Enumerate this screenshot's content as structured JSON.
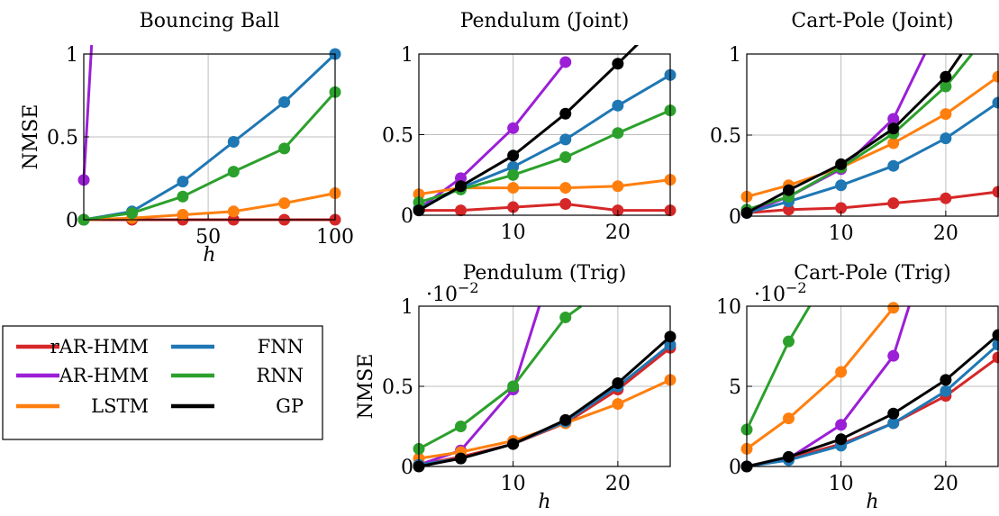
{
  "colors": {
    "rAR-HMM": "#d62728",
    "AR-HMM": "#9b1fd6",
    "LSTM": "#ff7f0e",
    "FNN": "#1f77b4",
    "RNN": "#2ca02c",
    "GP": "#000000"
  },
  "legend": {
    "entries": [
      {
        "name": "rAR-HMM",
        "label": "rAR-HMM"
      },
      {
        "name": "FNN",
        "label": "FNN"
      },
      {
        "name": "AR-HMM",
        "label": "AR-HMM"
      },
      {
        "name": "RNN",
        "label": "RNN"
      },
      {
        "name": "LSTM",
        "label": "LSTM"
      },
      {
        "name": "GP",
        "label": "GP"
      }
    ]
  },
  "chart_data": [
    {
      "type": "line",
      "title": "Bouncing Ball",
      "xlabel": "h",
      "ylabel": "NMSE",
      "xlim": [
        1,
        100
      ],
      "ylim": [
        0,
        1
      ],
      "xticks": [
        50,
        100
      ],
      "xtick_labels": [
        "50",
        "100"
      ],
      "yticks": [
        0,
        0.5,
        1
      ],
      "ytick_labels": [
        "0",
        "0.5",
        "1"
      ],
      "multiplier": "",
      "grid": true,
      "series": [
        {
          "name": "rAR-HMM",
          "x": [
            1,
            20,
            40,
            60,
            80,
            100
          ],
          "y": [
            0,
            0,
            0,
            0,
            0,
            0
          ]
        },
        {
          "name": "AR-HMM",
          "x": [
            1,
            5
          ],
          "y": [
            0.24,
            1.3
          ]
        },
        {
          "name": "LSTM",
          "x": [
            1,
            20,
            40,
            60,
            80,
            100
          ],
          "y": [
            0,
            0.01,
            0.03,
            0.05,
            0.1,
            0.16
          ]
        },
        {
          "name": "FNN",
          "x": [
            1,
            20,
            40,
            60,
            80,
            100
          ],
          "y": [
            0,
            0.05,
            0.23,
            0.47,
            0.71,
            1.0
          ]
        },
        {
          "name": "RNN",
          "x": [
            1,
            20,
            40,
            60,
            80,
            100
          ],
          "y": [
            0,
            0.04,
            0.14,
            0.29,
            0.43,
            0.77
          ]
        }
      ]
    },
    {
      "type": "line",
      "title": "Pendulum (Joint)",
      "xlabel": "",
      "ylabel": "",
      "xlim": [
        1,
        25
      ],
      "ylim": [
        0,
        1
      ],
      "xticks": [
        10,
        20
      ],
      "xtick_labels": [
        "10",
        "20"
      ],
      "yticks": [
        0,
        0.5,
        1
      ],
      "ytick_labels": [
        "0",
        "0.5",
        "1"
      ],
      "multiplier": "",
      "grid": true,
      "series": [
        {
          "name": "rAR-HMM",
          "x": [
            1,
            5,
            10,
            15,
            20,
            25
          ],
          "y": [
            0.03,
            0.03,
            0.05,
            0.07,
            0.03,
            0.03
          ]
        },
        {
          "name": "AR-HMM",
          "x": [
            1,
            5,
            10,
            15
          ],
          "y": [
            0.04,
            0.23,
            0.54,
            0.95
          ]
        },
        {
          "name": "LSTM",
          "x": [
            1,
            5,
            10,
            15,
            20,
            25
          ],
          "y": [
            0.13,
            0.17,
            0.17,
            0.17,
            0.18,
            0.22
          ]
        },
        {
          "name": "FNN",
          "x": [
            1,
            5,
            10,
            15,
            20,
            25
          ],
          "y": [
            0.04,
            0.17,
            0.3,
            0.47,
            0.68,
            0.87
          ]
        },
        {
          "name": "RNN",
          "x": [
            1,
            5,
            10,
            15,
            20,
            25
          ],
          "y": [
            0.08,
            0.16,
            0.25,
            0.36,
            0.51,
            0.65
          ]
        },
        {
          "name": "GP",
          "x": [
            1,
            5,
            10,
            15,
            20,
            22.5
          ],
          "y": [
            0.03,
            0.18,
            0.37,
            0.63,
            0.94,
            1.1
          ]
        }
      ]
    },
    {
      "type": "line",
      "title": "Cart-Pole (Joint)",
      "xlabel": "",
      "ylabel": "",
      "xlim": [
        1,
        25
      ],
      "ylim": [
        0,
        1
      ],
      "xticks": [
        10,
        20
      ],
      "xtick_labels": [
        "10",
        "20"
      ],
      "yticks": [
        0,
        0.5,
        1
      ],
      "ytick_labels": [
        "0",
        "0.5",
        "1"
      ],
      "multiplier": "",
      "grid": true,
      "series": [
        {
          "name": "rAR-HMM",
          "x": [
            1,
            5,
            10,
            15,
            20,
            25
          ],
          "y": [
            0.02,
            0.04,
            0.05,
            0.08,
            0.11,
            0.15
          ]
        },
        {
          "name": "AR-HMM",
          "x": [
            1,
            5,
            10,
            15,
            18
          ],
          "y": [
            0.02,
            0.12,
            0.29,
            0.6,
            1.0
          ]
        },
        {
          "name": "LSTM",
          "x": [
            1,
            5,
            10,
            15,
            20,
            25
          ],
          "y": [
            0.12,
            0.19,
            0.3,
            0.45,
            0.63,
            0.86
          ]
        },
        {
          "name": "FNN",
          "x": [
            1,
            5,
            10,
            15,
            20,
            25
          ],
          "y": [
            0.02,
            0.09,
            0.19,
            0.31,
            0.48,
            0.7
          ]
        },
        {
          "name": "RNN",
          "x": [
            1,
            5,
            10,
            15,
            20,
            22.5
          ],
          "y": [
            0.04,
            0.12,
            0.3,
            0.51,
            0.8,
            1.0
          ]
        },
        {
          "name": "GP",
          "x": [
            1,
            5,
            10,
            15,
            20,
            21.5
          ],
          "y": [
            0.02,
            0.16,
            0.32,
            0.54,
            0.86,
            1.0
          ]
        }
      ]
    },
    {
      "type": "line",
      "title": "Pendulum (Trig)",
      "xlabel": "h",
      "ylabel": "NMSE",
      "xlim": [
        1,
        25
      ],
      "ylim": [
        0,
        1
      ],
      "xticks": [
        10,
        20
      ],
      "xtick_labels": [
        "10",
        "20"
      ],
      "yticks": [
        0,
        0.5,
        1
      ],
      "ytick_labels": [
        "0",
        "0.5",
        "1"
      ],
      "multiplier": "·10",
      "multiplier_exp": "−2",
      "grid": true,
      "series": [
        {
          "name": "rAR-HMM",
          "x": [
            1,
            5,
            10,
            15,
            20,
            25
          ],
          "y": [
            0.01,
            0.06,
            0.14,
            0.27,
            0.48,
            0.74
          ]
        },
        {
          "name": "AR-HMM",
          "x": [
            1,
            5,
            10,
            12.5
          ],
          "y": [
            0.01,
            0.1,
            0.48,
            1.0
          ]
        },
        {
          "name": "LSTM",
          "x": [
            1,
            5,
            10,
            15,
            20,
            25
          ],
          "y": [
            0.05,
            0.09,
            0.16,
            0.27,
            0.39,
            0.54
          ]
        },
        {
          "name": "FNN",
          "x": [
            1,
            5,
            10,
            15,
            20,
            25
          ],
          "y": [
            0.01,
            0.05,
            0.14,
            0.28,
            0.5,
            0.76
          ]
        },
        {
          "name": "RNN",
          "x": [
            1,
            5,
            10,
            15,
            16.5
          ],
          "y": [
            0.11,
            0.25,
            0.5,
            0.93,
            1.0
          ]
        },
        {
          "name": "GP",
          "x": [
            1,
            5,
            10,
            15,
            20,
            25
          ],
          "y": [
            0.0,
            0.05,
            0.14,
            0.29,
            0.52,
            0.81
          ]
        }
      ]
    },
    {
      "type": "line",
      "title": "Cart-Pole (Trig)",
      "xlabel": "h",
      "ylabel": "",
      "xlim": [
        1,
        25
      ],
      "ylim": [
        0,
        10
      ],
      "xticks": [
        10,
        20
      ],
      "xtick_labels": [
        "10",
        "20"
      ],
      "yticks": [
        0,
        5,
        10
      ],
      "ytick_labels": [
        "0",
        "5",
        "10"
      ],
      "multiplier": "·10",
      "multiplier_exp": "−2",
      "grid": true,
      "series": [
        {
          "name": "rAR-HMM",
          "x": [
            1,
            5,
            10,
            15,
            20,
            25
          ],
          "y": [
            0.0,
            0.5,
            1.4,
            2.7,
            4.4,
            6.8
          ]
        },
        {
          "name": "AR-HMM",
          "x": [
            1,
            5,
            10,
            15,
            16.5
          ],
          "y": [
            0.0,
            0.5,
            2.6,
            6.9,
            10.0
          ]
        },
        {
          "name": "LSTM",
          "x": [
            1,
            5,
            10,
            15
          ],
          "y": [
            1.1,
            3.0,
            5.9,
            9.9
          ]
        },
        {
          "name": "FNN",
          "x": [
            1,
            5,
            10,
            15,
            20,
            25
          ],
          "y": [
            0.0,
            0.4,
            1.3,
            2.7,
            4.7,
            7.6
          ]
        },
        {
          "name": "RNN",
          "x": [
            1,
            5,
            7
          ],
          "y": [
            2.3,
            7.8,
            10.0
          ]
        },
        {
          "name": "GP",
          "x": [
            1,
            5,
            10,
            15,
            20,
            25
          ],
          "y": [
            0.0,
            0.6,
            1.7,
            3.3,
            5.4,
            8.2
          ]
        }
      ]
    }
  ]
}
